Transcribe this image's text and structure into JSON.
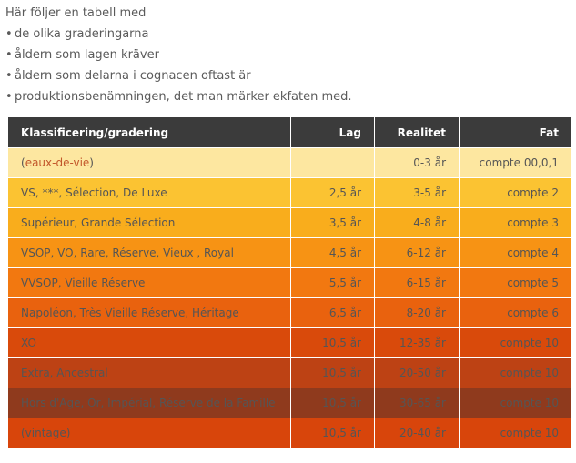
{
  "intro": {
    "lead": "Här följer en tabell med",
    "bullet_char": "•",
    "bullets": [
      "de olika graderingarna",
      "åldern som lagen kräver",
      "åldern som delarna i cognacen oftast är",
      "produktionsbenämningen, det man märker ekfaten med."
    ]
  },
  "table": {
    "headers": {
      "classification": "Klassificering/gradering",
      "lag": "Lag",
      "realitet": "Realitet",
      "fat": "Fat"
    },
    "header_color": "#3b3b3b",
    "rows": [
      {
        "prefix": "(",
        "classification": "eaux-de-vie",
        "suffix": ")",
        "lag": "",
        "realitet": "0-3 år",
        "fat": "compte 00,0,1",
        "color": "#fde7a0",
        "text_color": "#555555"
      },
      {
        "prefix": "",
        "classification": "VS, ***, Sélection, De Luxe",
        "suffix": "",
        "lag": "2,5 år",
        "realitet": "3-5 år",
        "fat": "compte 2",
        "color": "#fbc332",
        "text_color": "#555555"
      },
      {
        "prefix": "",
        "classification": "Supérieur, Grande Sélection",
        "suffix": "",
        "lag": "3,5 år",
        "realitet": "4-8 år",
        "fat": "compte 3",
        "color": "#f9ad1c",
        "text_color": "#555555"
      },
      {
        "prefix": "",
        "classification": "VSOP, VO, Rare, Réserve, Vieux , Royal",
        "suffix": "",
        "lag": "4,5 år",
        "realitet": "6-12 år",
        "fat": "compte 4",
        "color": "#f79314",
        "text_color": "#555555"
      },
      {
        "prefix": "",
        "classification": "VVSOP, Vieille Réserve",
        "suffix": "",
        "lag": "5,5 år",
        "realitet": "6-15 år",
        "fat": "compte 5",
        "color": "#f27810",
        "text_color": "#555555"
      },
      {
        "prefix": "",
        "classification": "Napoléon, Très Vieille Réserve, Héritage",
        "suffix": "",
        "lag": "6,5 år",
        "realitet": "8-20 år",
        "fat": "compte 6",
        "color": "#e9620e",
        "text_color": "#555555"
      },
      {
        "prefix": "",
        "classification": "XO",
        "suffix": "",
        "lag": "10,5 år",
        "realitet": "12-35 år",
        "fat": "compte 10",
        "color": "#d94a0b",
        "text_color": "#555555"
      },
      {
        "prefix": "",
        "classification": "Extra, Ancestral",
        "suffix": "",
        "lag": "10,5 år",
        "realitet": "20-50 år",
        "fat": "compte 10",
        "color": "#bd4214",
        "text_color": "#555555"
      },
      {
        "prefix": "",
        "classification": "Hors d'Age, Or, Impérial, Réserve de la Famille",
        "suffix": "",
        "lag": "10,5 år",
        "realitet": "30-65 år",
        "fat": "compte 10",
        "color": "#8f3a1d",
        "text_color": "#555555"
      },
      {
        "prefix": "",
        "classification": "(vintage)",
        "suffix": "",
        "lag": "10,5 år",
        "realitet": "20-40 år",
        "fat": "compte 10",
        "color": "#d8450b",
        "text_color": "#555555"
      }
    ]
  }
}
